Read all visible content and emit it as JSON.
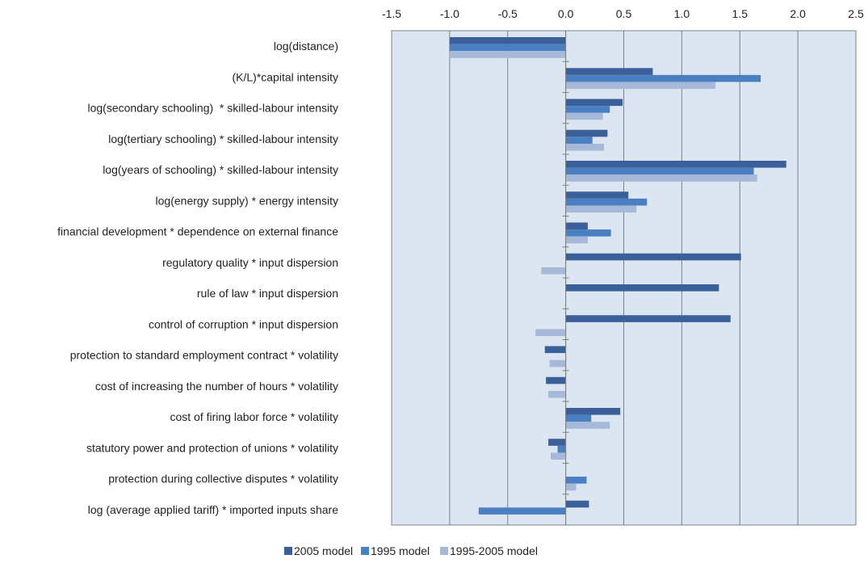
{
  "chart_data": {
    "type": "bar",
    "orientation": "horizontal",
    "title": "",
    "xlabel": "",
    "ylabel": "",
    "xlim": [
      -1.5,
      2.5
    ],
    "x_ticks": [
      "-1.5",
      "-1.0",
      "-0.5",
      "0.0",
      "0.5",
      "1.0",
      "1.5",
      "2.0",
      "2.5"
    ],
    "x_tick_values": [
      -1.5,
      -1.0,
      -0.5,
      0.0,
      0.5,
      1.0,
      1.5,
      2.0,
      2.5
    ],
    "grid": true,
    "legend_position": "bottom",
    "plot_background": "#dce6f2",
    "categories": [
      "log(distance)",
      "(K/L)*capital intensity",
      "log(secondary schooling)  * skilled-labour intensity",
      "log(tertiary schooling) * skilled-labour intensity",
      "log(years of schooling) * skilled-labour intensity",
      "log(energy supply) * energy intensity",
      "financial development * dependence on external finance",
      "regulatory quality * input dispersion",
      "rule of law * input dispersion",
      "control of corruption * input dispersion",
      "protection to standard employment contract * volatility",
      "cost of increasing the number of hours * volatility",
      "cost of firing labor force * volatility",
      "statutory power and protection of unions * volatility",
      "protection during collective disputes * volatility",
      "log (average applied tariff) * imported inputs share"
    ],
    "series": [
      {
        "name": "2005 model",
        "color": "#3a5f99",
        "values": [
          -1.0,
          0.75,
          0.49,
          0.36,
          1.9,
          0.54,
          0.19,
          1.51,
          1.32,
          1.42,
          -0.18,
          -0.17,
          0.47,
          -0.15,
          0.0,
          0.2
        ]
      },
      {
        "name": "1995 model",
        "color": "#4a7fc1",
        "values": [
          -1.0,
          1.68,
          0.38,
          0.23,
          1.62,
          0.7,
          0.39,
          0.0,
          0.0,
          0.0,
          0.0,
          0.0,
          0.22,
          -0.07,
          0.18,
          -0.75
        ]
      },
      {
        "name": "1995-2005 model",
        "color": "#a7b9d9",
        "values": [
          -1.0,
          1.29,
          0.32,
          0.33,
          1.65,
          0.61,
          0.19,
          -0.21,
          0.0,
          -0.26,
          -0.14,
          -0.15,
          0.38,
          -0.13,
          0.09,
          0.0
        ]
      }
    ]
  }
}
